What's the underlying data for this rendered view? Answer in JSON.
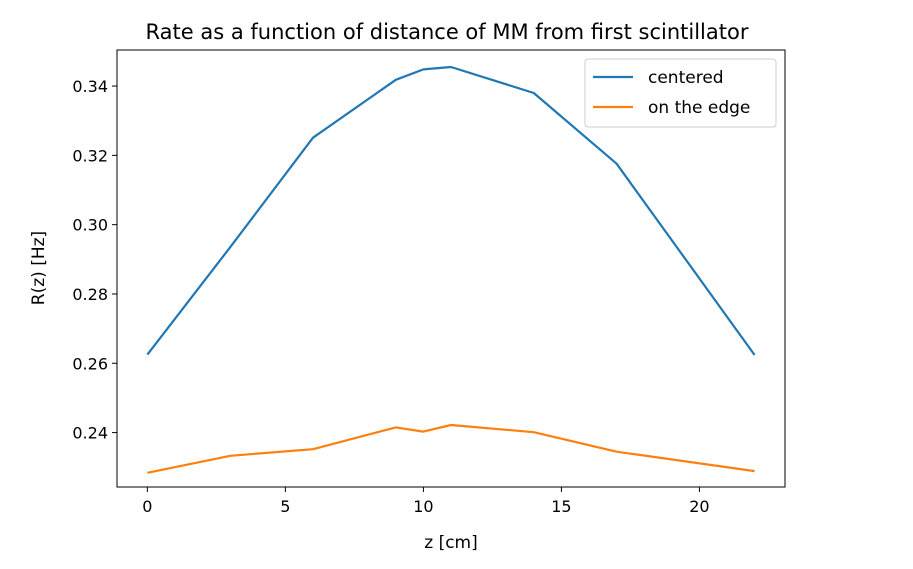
{
  "chart_data": {
    "type": "line",
    "title": "Rate as a function of distance of MM from first scintillator",
    "xlabel": "z [cm]",
    "ylabel": "R(z) [Hz]",
    "xlim": [
      -1.1,
      23.1
    ],
    "ylim": [
      0.2243,
      0.3504
    ],
    "xticks": [
      0,
      5,
      10,
      15,
      20
    ],
    "xtick_labels": [
      "0",
      "5",
      "10",
      "15",
      "20"
    ],
    "yticks": [
      0.24,
      0.26,
      0.28,
      0.3,
      0.32,
      0.34
    ],
    "ytick_labels": [
      "0.24",
      "0.26",
      "0.28",
      "0.30",
      "0.32",
      "0.34"
    ],
    "grid": false,
    "legend_position": "top-right",
    "series": [
      {
        "name": "centered",
        "color": "#1f77b4",
        "x": [
          0,
          3,
          6,
          9,
          10,
          11,
          14,
          17,
          22
        ],
        "y": [
          0.2625,
          0.2935,
          0.3251,
          0.3418,
          0.3448,
          0.3455,
          0.338,
          0.3176,
          0.2624
        ]
      },
      {
        "name": "on the edge",
        "color": "#ff7f0e",
        "x": [
          0,
          3,
          6,
          9,
          10,
          11,
          14,
          17,
          22
        ],
        "y": [
          0.2284,
          0.2333,
          0.2352,
          0.2415,
          0.2403,
          0.2422,
          0.2401,
          0.2345,
          0.2289
        ]
      }
    ]
  }
}
